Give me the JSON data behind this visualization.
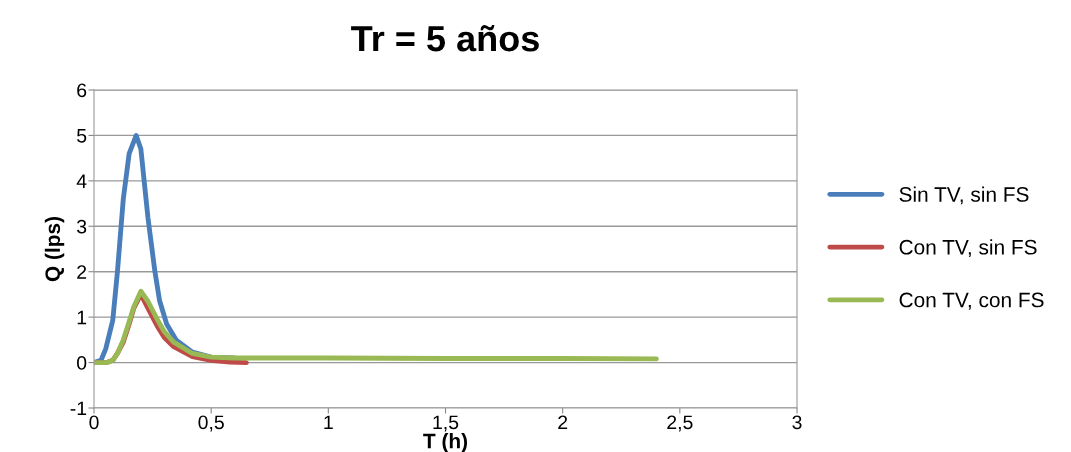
{
  "chart_data": {
    "type": "line",
    "title": "Tr = 5 años",
    "xlabel": "T (h)",
    "ylabel": "Q (lps)",
    "xlim": [
      0,
      3
    ],
    "ylim": [
      -1,
      6
    ],
    "xticks": [
      {
        "value": 0,
        "label": "0"
      },
      {
        "value": 0.5,
        "label": "0,5"
      },
      {
        "value": 1,
        "label": "1"
      },
      {
        "value": 1.5,
        "label": "1,5"
      },
      {
        "value": 2,
        "label": "2"
      },
      {
        "value": 2.5,
        "label": "2,5"
      },
      {
        "value": 3,
        "label": "3"
      }
    ],
    "yticks": [
      -1,
      0,
      1,
      2,
      3,
      4,
      5,
      6
    ],
    "grid": "y",
    "legend": "right",
    "marker": "none",
    "line_style": "solid",
    "series": [
      {
        "name": "Sin TV, sin FS",
        "color": "#4a7ebb",
        "x": [
          0,
          0.03,
          0.05,
          0.08,
          0.1,
          0.125,
          0.15,
          0.18,
          0.2,
          0.23,
          0.26,
          0.28,
          0.31,
          0.35,
          0.42,
          0.5,
          0.6
        ],
        "values": [
          0,
          0.05,
          0.3,
          0.93,
          2.0,
          3.6,
          4.6,
          5.0,
          4.7,
          3.2,
          2.0,
          1.36,
          0.85,
          0.5,
          0.23,
          0.12,
          0.1
        ]
      },
      {
        "name": "Con TV, sin FS",
        "color": "#be4b48",
        "x": [
          0,
          0.055,
          0.08,
          0.1,
          0.125,
          0.15,
          0.17,
          0.2,
          0.23,
          0.27,
          0.3,
          0.34,
          0.42,
          0.5,
          0.58,
          0.65
        ],
        "values": [
          0,
          0,
          0.05,
          0.2,
          0.45,
          0.85,
          1.2,
          1.5,
          1.2,
          0.8,
          0.55,
          0.35,
          0.13,
          0.05,
          0.01,
          0
        ]
      },
      {
        "name": "Con TV, con FS",
        "color": "#98b954",
        "x": [
          0,
          0.055,
          0.08,
          0.1,
          0.125,
          0.15,
          0.17,
          0.2,
          0.23,
          0.27,
          0.3,
          0.34,
          0.42,
          0.5,
          0.6,
          1.0,
          1.5,
          2.0,
          2.4
        ],
        "values": [
          0,
          0,
          0.05,
          0.2,
          0.5,
          0.9,
          1.23,
          1.57,
          1.35,
          0.95,
          0.68,
          0.45,
          0.2,
          0.12,
          0.1,
          0.1,
          0.09,
          0.09,
          0.08
        ]
      }
    ]
  }
}
